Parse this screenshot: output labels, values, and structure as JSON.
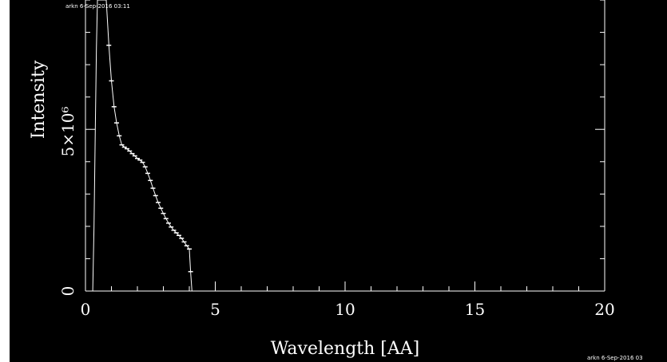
{
  "stamp_top": "arkn 6-Sep-2016 03:11",
  "stamp_bottom": "arkn 6-Sep-2016 03",
  "colors": {
    "background": "#000000",
    "foreground": "#ffffff",
    "left_strip": "#ffffff"
  },
  "chart_data": {
    "type": "line",
    "title": "",
    "xlabel": "Wavelength [AA]",
    "ylabel": "Intensity",
    "ylabel_multiplier": "5×10⁶",
    "xlim": [
      0,
      20
    ],
    "ylim": [
      0,
      9000000
    ],
    "x_ticks": [
      0,
      5,
      10,
      15,
      20
    ],
    "x_tick_labels": [
      "0",
      "5",
      "10",
      "15",
      "20"
    ],
    "y_ticks": [
      0,
      5000000
    ],
    "y_tick_labels": [
      "0",
      ""
    ],
    "grid": false,
    "legend": "none",
    "series": [
      {
        "x": [
          0.28,
          0.33,
          0.38,
          0.42,
          0.46,
          0.52,
          0.6,
          0.7,
          0.8,
          0.9,
          1.0,
          1.1,
          1.2,
          1.3,
          1.4,
          1.5,
          1.6,
          1.7,
          1.8,
          1.9,
          2.0,
          2.1,
          2.2,
          2.3,
          2.4,
          2.5,
          2.6,
          2.7,
          2.8,
          2.9,
          3.0,
          3.1,
          3.2,
          3.3,
          3.4,
          3.5,
          3.6,
          3.7,
          3.8,
          3.9,
          4.0,
          4.05,
          4.1
        ],
        "y": [
          0,
          2000000,
          5000000,
          7500000,
          9000000,
          9000000,
          9000000,
          9000000,
          9000000,
          7600000,
          6500000,
          5700000,
          5200000,
          4800000,
          4520000,
          4450000,
          4400000,
          4330000,
          4250000,
          4180000,
          4100000,
          4050000,
          3980000,
          3840000,
          3640000,
          3420000,
          3180000,
          2950000,
          2740000,
          2560000,
          2400000,
          2240000,
          2100000,
          1980000,
          1880000,
          1800000,
          1720000,
          1630000,
          1520000,
          1400000,
          1300000,
          600000,
          0
        ]
      }
    ]
  }
}
